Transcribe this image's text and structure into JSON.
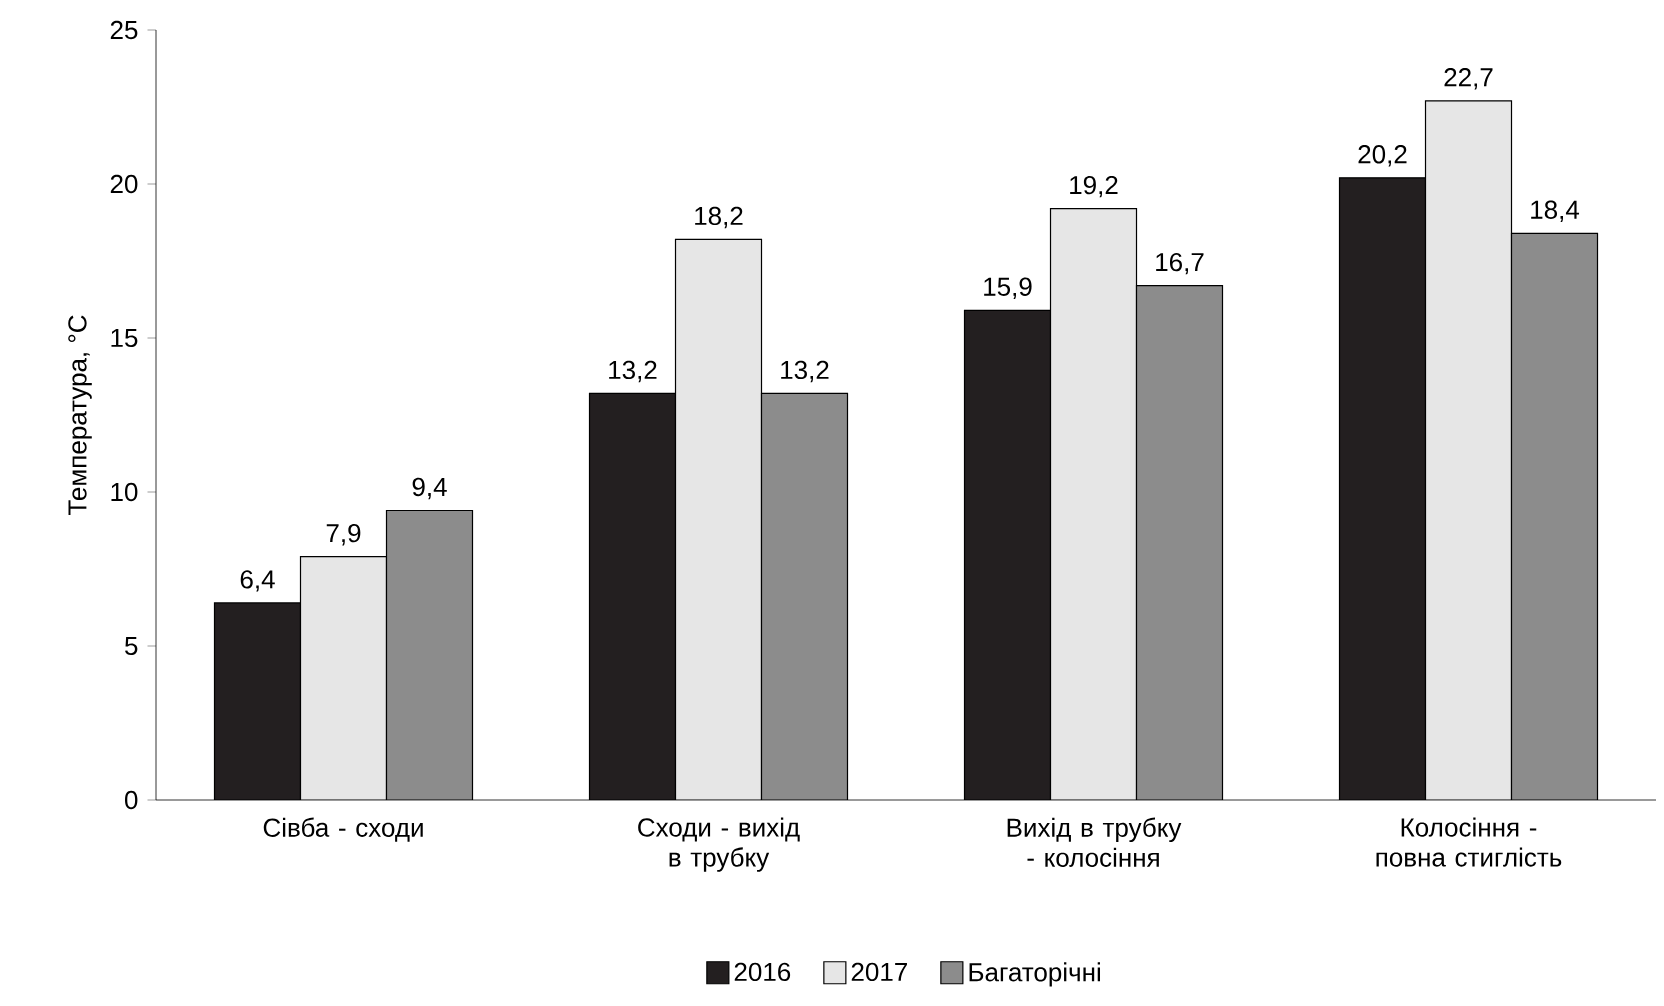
{
  "chart_data": {
    "type": "bar",
    "ylabel": "Температура, °C",
    "categories": [
      "Сівба - сходи",
      "Сходи - вихід в трубку",
      "Вихід в трубку - колосіння",
      "Колосіння - повна стиглість"
    ],
    "series": [
      {
        "name": "2016",
        "color": "#231f20",
        "values": [
          6.4,
          13.2,
          15.9,
          20.2
        ],
        "value_labels": [
          "6,4",
          "13,2",
          "15,9",
          "20,2"
        ]
      },
      {
        "name": "2017",
        "color": "#e6e6e6",
        "values": [
          7.9,
          18.2,
          19.2,
          22.7
        ],
        "value_labels": [
          "7,9",
          "18,2",
          "19,2",
          "22,7"
        ]
      },
      {
        "name": "Багаторічні",
        "color": "#8c8c8c",
        "values": [
          9.4,
          13.2,
          16.7,
          18.4
        ],
        "value_labels": [
          "9,4",
          "13,2",
          "16,7",
          "18,4"
        ]
      }
    ],
    "ylim": [
      0,
      25
    ],
    "yticks": [
      0,
      5,
      10,
      15,
      20,
      25
    ],
    "legend": "bottom",
    "grid": false
  }
}
